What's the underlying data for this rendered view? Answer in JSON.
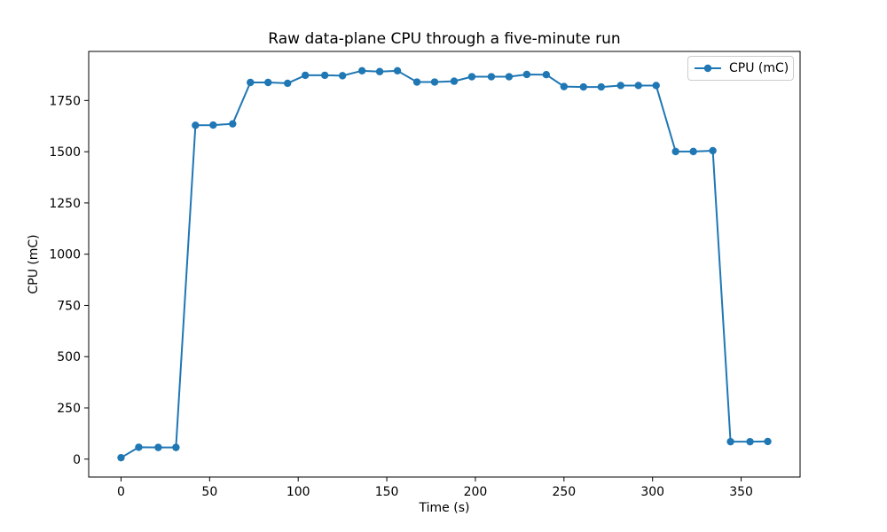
{
  "figure": {
    "background": "#ffffff",
    "text_color": "#000000",
    "spine_color": "#000000",
    "legend_border_color": "#cccccc"
  },
  "chart_data": {
    "type": "line",
    "title": "Raw data-plane CPU through a five-minute run",
    "xlabel": "Time (s)",
    "ylabel": "CPU (mC)",
    "xlim": [
      -18.25,
      383.25
    ],
    "ylim": [
      -87.4,
      1989.4
    ],
    "xticks": [
      0,
      50,
      100,
      150,
      200,
      250,
      300,
      350
    ],
    "yticks": [
      0,
      250,
      500,
      750,
      1000,
      1250,
      1500,
      1750
    ],
    "grid": false,
    "legend": {
      "position": "upper right",
      "entries": [
        "CPU (mC)"
      ]
    },
    "series": [
      {
        "name": "CPU (mC)",
        "color": "#1f77b4",
        "marker": "circle",
        "x": [
          0,
          10,
          21,
          31,
          42,
          52,
          63,
          73,
          83,
          94,
          104,
          115,
          125,
          136,
          146,
          156,
          167,
          177,
          188,
          198,
          209,
          219,
          229,
          240,
          250,
          261,
          271,
          282,
          292,
          302,
          313,
          323,
          334,
          344,
          355,
          365
        ],
        "y": [
          7,
          58,
          57,
          57,
          1629,
          1630,
          1636,
          1838,
          1838,
          1834,
          1873,
          1873,
          1871,
          1895,
          1891,
          1895,
          1840,
          1840,
          1844,
          1866,
          1866,
          1866,
          1877,
          1876,
          1818,
          1816,
          1816,
          1823,
          1823,
          1823,
          1501,
          1501,
          1505,
          85,
          85,
          86
        ]
      }
    ]
  }
}
